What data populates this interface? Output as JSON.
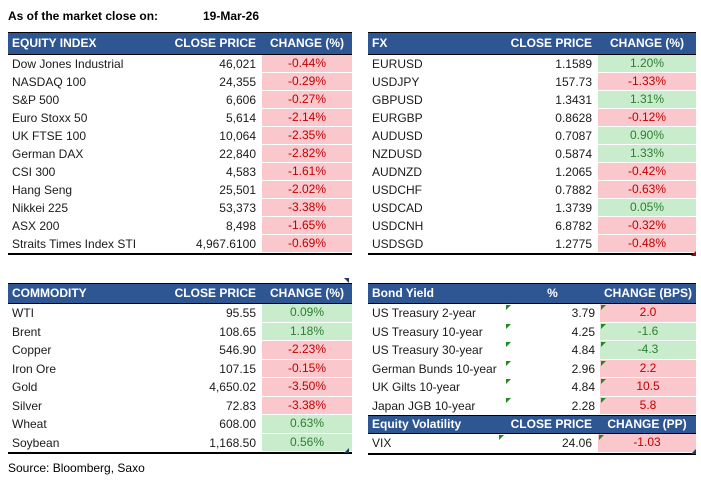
{
  "meta": {
    "as_of_label": "As of the market close on:",
    "date": "19-Mar-26",
    "source": "Source: Bloomberg, Saxo"
  },
  "colors": {
    "header_bg": "#2E5693",
    "negative_bg": "#FAC8CC",
    "negative_text": "#C00000",
    "positive_bg": "#C9EDCC",
    "positive_text": "#2E7D32",
    "flag_green": "#1E8C1E",
    "artifact_blue": "#203864",
    "artifact_red": "#C00000"
  },
  "tables": {
    "equity": {
      "title": "EQUITY INDEX",
      "col2": "CLOSE PRICE",
      "col3": "CHANGE (%)",
      "rows": [
        {
          "name": "Dow Jones Industrial",
          "price": "46,021",
          "change": "-0.44%",
          "style": "neg"
        },
        {
          "name": "NASDAQ 100",
          "price": "24,355",
          "change": "-0.29%",
          "style": "neg"
        },
        {
          "name": "S&P 500",
          "price": "6,606",
          "change": "-0.27%",
          "style": "neg"
        },
        {
          "name": "Euro Stoxx 50",
          "price": "5,614",
          "change": "-2.14%",
          "style": "neg"
        },
        {
          "name": "UK FTSE 100",
          "price": "10,064",
          "change": "-2.35%",
          "style": "neg"
        },
        {
          "name": "German DAX",
          "price": "22,840",
          "change": "-2.82%",
          "style": "neg"
        },
        {
          "name": "CSI 300",
          "price": "4,583",
          "change": "-1.61%",
          "style": "neg"
        },
        {
          "name": "Hang Seng",
          "price": "25,501",
          "change": "-2.02%",
          "style": "neg"
        },
        {
          "name": "Nikkei 225",
          "price": "53,373",
          "change": "-3.38%",
          "style": "neg"
        },
        {
          "name": "ASX 200",
          "price": "8,498",
          "change": "-1.65%",
          "style": "neg"
        },
        {
          "name": "Straits Times Index STI",
          "price": "4,967.6100",
          "change": "-0.69%",
          "style": "neg"
        }
      ]
    },
    "fx": {
      "title": "FX",
      "col2": "CLOSE PRICE",
      "col3": "CHANGE (%)",
      "rows": [
        {
          "name": "EURUSD",
          "price": "1.1589",
          "change": "1.20%",
          "style": "pos"
        },
        {
          "name": "USDJPY",
          "price": "157.73",
          "change": "-1.33%",
          "style": "neg"
        },
        {
          "name": "GBPUSD",
          "price": "1.3431",
          "change": "1.31%",
          "style": "pos"
        },
        {
          "name": "EURGBP",
          "price": "0.8628",
          "change": "-0.12%",
          "style": "neg"
        },
        {
          "name": "AUDUSD",
          "price": "0.7087",
          "change": "0.90%",
          "style": "pos"
        },
        {
          "name": "NZDUSD",
          "price": "0.5874",
          "change": "1.33%",
          "style": "pos"
        },
        {
          "name": "AUDNZD",
          "price": "1.2065",
          "change": "-0.42%",
          "style": "neg"
        },
        {
          "name": "USDCHF",
          "price": "0.7882",
          "change": "-0.63%",
          "style": "neg"
        },
        {
          "name": "USDCAD",
          "price": "1.3739",
          "change": "0.05%",
          "style": "pos"
        },
        {
          "name": "USDCNH",
          "price": "6.8782",
          "change": "-0.32%",
          "style": "neg"
        },
        {
          "name": "USDSGD",
          "price": "1.2775",
          "change": "-0.48%",
          "style": "neg"
        }
      ]
    },
    "commodity": {
      "title": "COMMODITY",
      "col2": "CLOSE PRICE",
      "col3": "CHANGE (%)",
      "rows": [
        {
          "name": "WTI",
          "price": "95.55",
          "change": "0.09%",
          "style": "pos"
        },
        {
          "name": "Brent",
          "price": "108.65",
          "change": "1.18%",
          "style": "pos"
        },
        {
          "name": "Copper",
          "price": "546.90",
          "change": "-2.23%",
          "style": "neg"
        },
        {
          "name": "Iron Ore",
          "price": "107.15",
          "change": "-0.15%",
          "style": "neg"
        },
        {
          "name": "Gold",
          "price": "4,650.02",
          "change": "-3.50%",
          "style": "neg"
        },
        {
          "name": "Silver",
          "price": "72.83",
          "change": "-3.38%",
          "style": "neg"
        },
        {
          "name": "Wheat",
          "price": "608.00",
          "change": "0.63%",
          "style": "pos"
        },
        {
          "name": "Soybean",
          "price": "1,168.50",
          "change": "0.56%",
          "style": "pos"
        }
      ]
    },
    "bond": {
      "title": "Bond Yield",
      "col2": "%",
      "col3": "CHANGE (BPS)",
      "rows": [
        {
          "name": "US Treasury 2-year",
          "price": "3.79",
          "change": "2.0",
          "style": "neg",
          "flag": true
        },
        {
          "name": "US Treasury 10-year",
          "price": "4.25",
          "change": "-1.6",
          "style": "pos",
          "flag": true
        },
        {
          "name": "US Treasury 30-year",
          "price": "4.84",
          "change": "-4.3",
          "style": "pos",
          "flag": true
        },
        {
          "name": "German Bunds 10-year",
          "price": "2.96",
          "change": "2.2",
          "style": "neg",
          "flag": true
        },
        {
          "name": "UK Gilts 10-year",
          "price": "4.84",
          "change": "10.5",
          "style": "neg",
          "flag": true
        },
        {
          "name": "Japan JGB 10-year",
          "price": "2.28",
          "change": "5.8",
          "style": "neg",
          "flag": true
        }
      ]
    },
    "volatility": {
      "title": "Equity Volatility",
      "col2": "CLOSE PRICE",
      "col3": "CHANGE (PP)",
      "rows": [
        {
          "name": "VIX",
          "price": "24.06",
          "change": "-1.03",
          "style": "neg",
          "flag": true
        }
      ]
    }
  }
}
